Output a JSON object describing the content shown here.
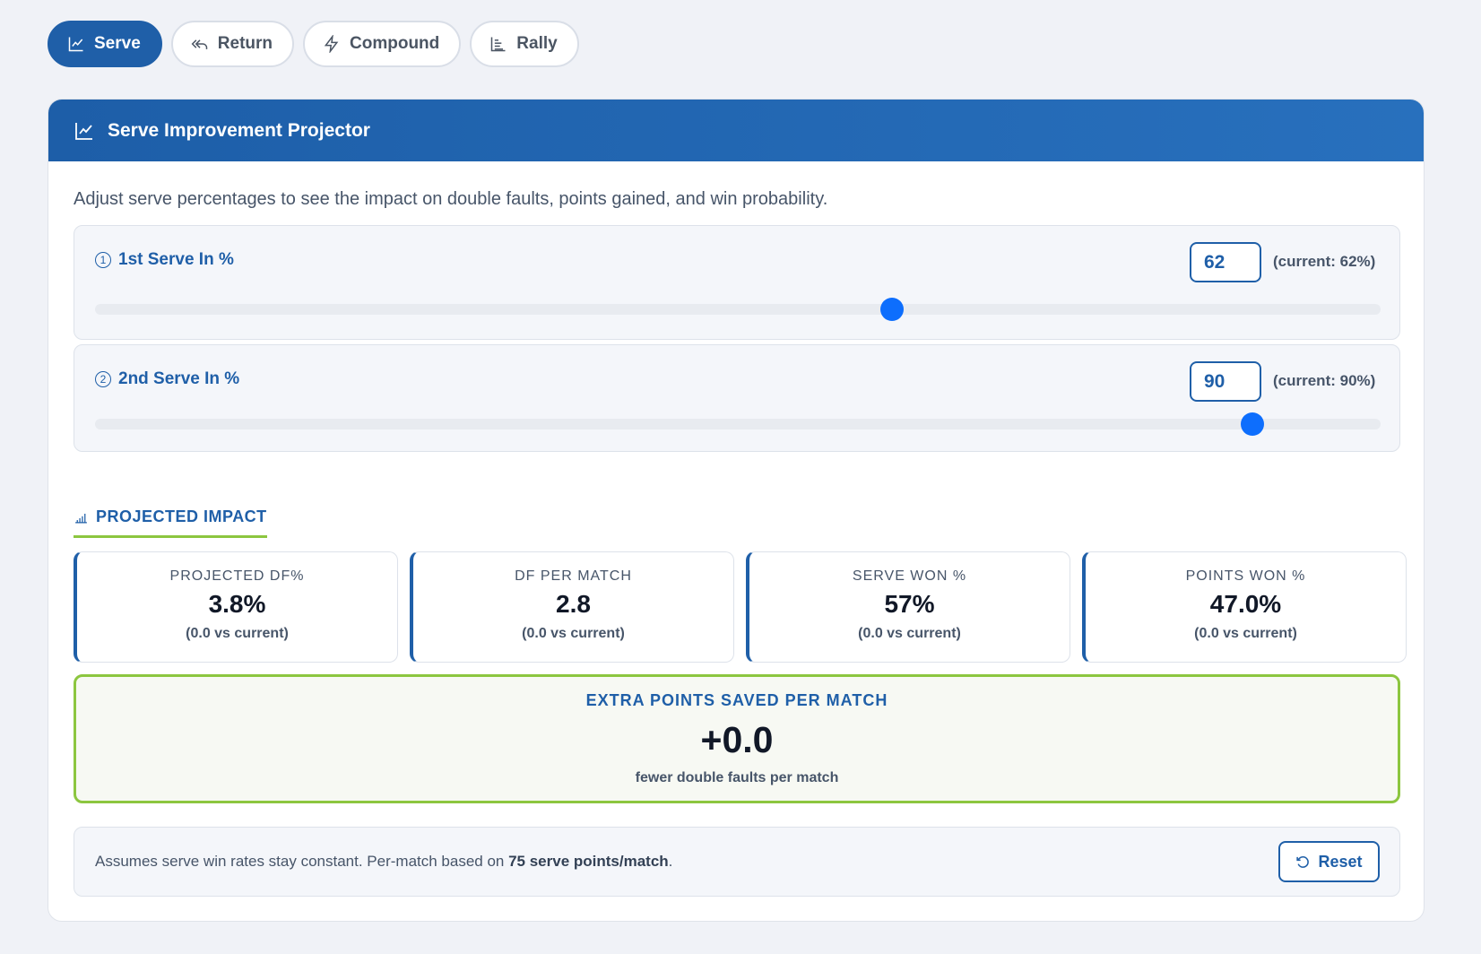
{
  "tabs": [
    {
      "label": "Serve",
      "icon": "line-chart-icon",
      "active": true
    },
    {
      "label": "Return",
      "icon": "reply-all-icon",
      "active": false
    },
    {
      "label": "Compound",
      "icon": "lightning-icon",
      "active": false
    },
    {
      "label": "Rally",
      "icon": "bar-list-icon",
      "active": false
    }
  ],
  "header": {
    "title": "Serve Improvement Projector",
    "icon": "line-chart-icon"
  },
  "description": "Adjust serve percentages to see the impact on double faults, points gained, and win probability.",
  "sliders": [
    {
      "number": "1",
      "label": "1st Serve In %",
      "value": "62",
      "current_note": "(current: 62%)",
      "level_percent": 62
    },
    {
      "number": "2",
      "label": "2nd Serve In %",
      "value": "90",
      "current_note": "(current: 90%)",
      "level_percent": 90
    }
  ],
  "impact": {
    "title": "PROJECTED IMPACT",
    "icon": "bar-chart-icon",
    "stats": [
      {
        "label": "PROJECTED DF%",
        "value": "3.8%",
        "delta": "(0.0 vs current)"
      },
      {
        "label": "DF PER MATCH",
        "value": "2.8",
        "delta": "(0.0 vs current)"
      },
      {
        "label": "SERVE WON %",
        "value": "57%",
        "delta": "(0.0 vs current)"
      },
      {
        "label": "POINTS WON %",
        "value": "47.0%",
        "delta": "(0.0 vs current)"
      }
    ]
  },
  "extra": {
    "title": "EXTRA POINTS SAVED PER MATCH",
    "value": "+0.0",
    "subtitle": "fewer double faults per match"
  },
  "footer": {
    "text_before": "Assumes serve win rates stay constant. Per-match based on ",
    "text_bold": "75 serve points/match",
    "text_after": ".",
    "reset_label": "Reset",
    "reset_icon": "rotate-ccw-icon"
  },
  "colors": {
    "primary": "#1f5fa8",
    "accent": "#8cc63f",
    "thumb": "#0d6efd"
  }
}
